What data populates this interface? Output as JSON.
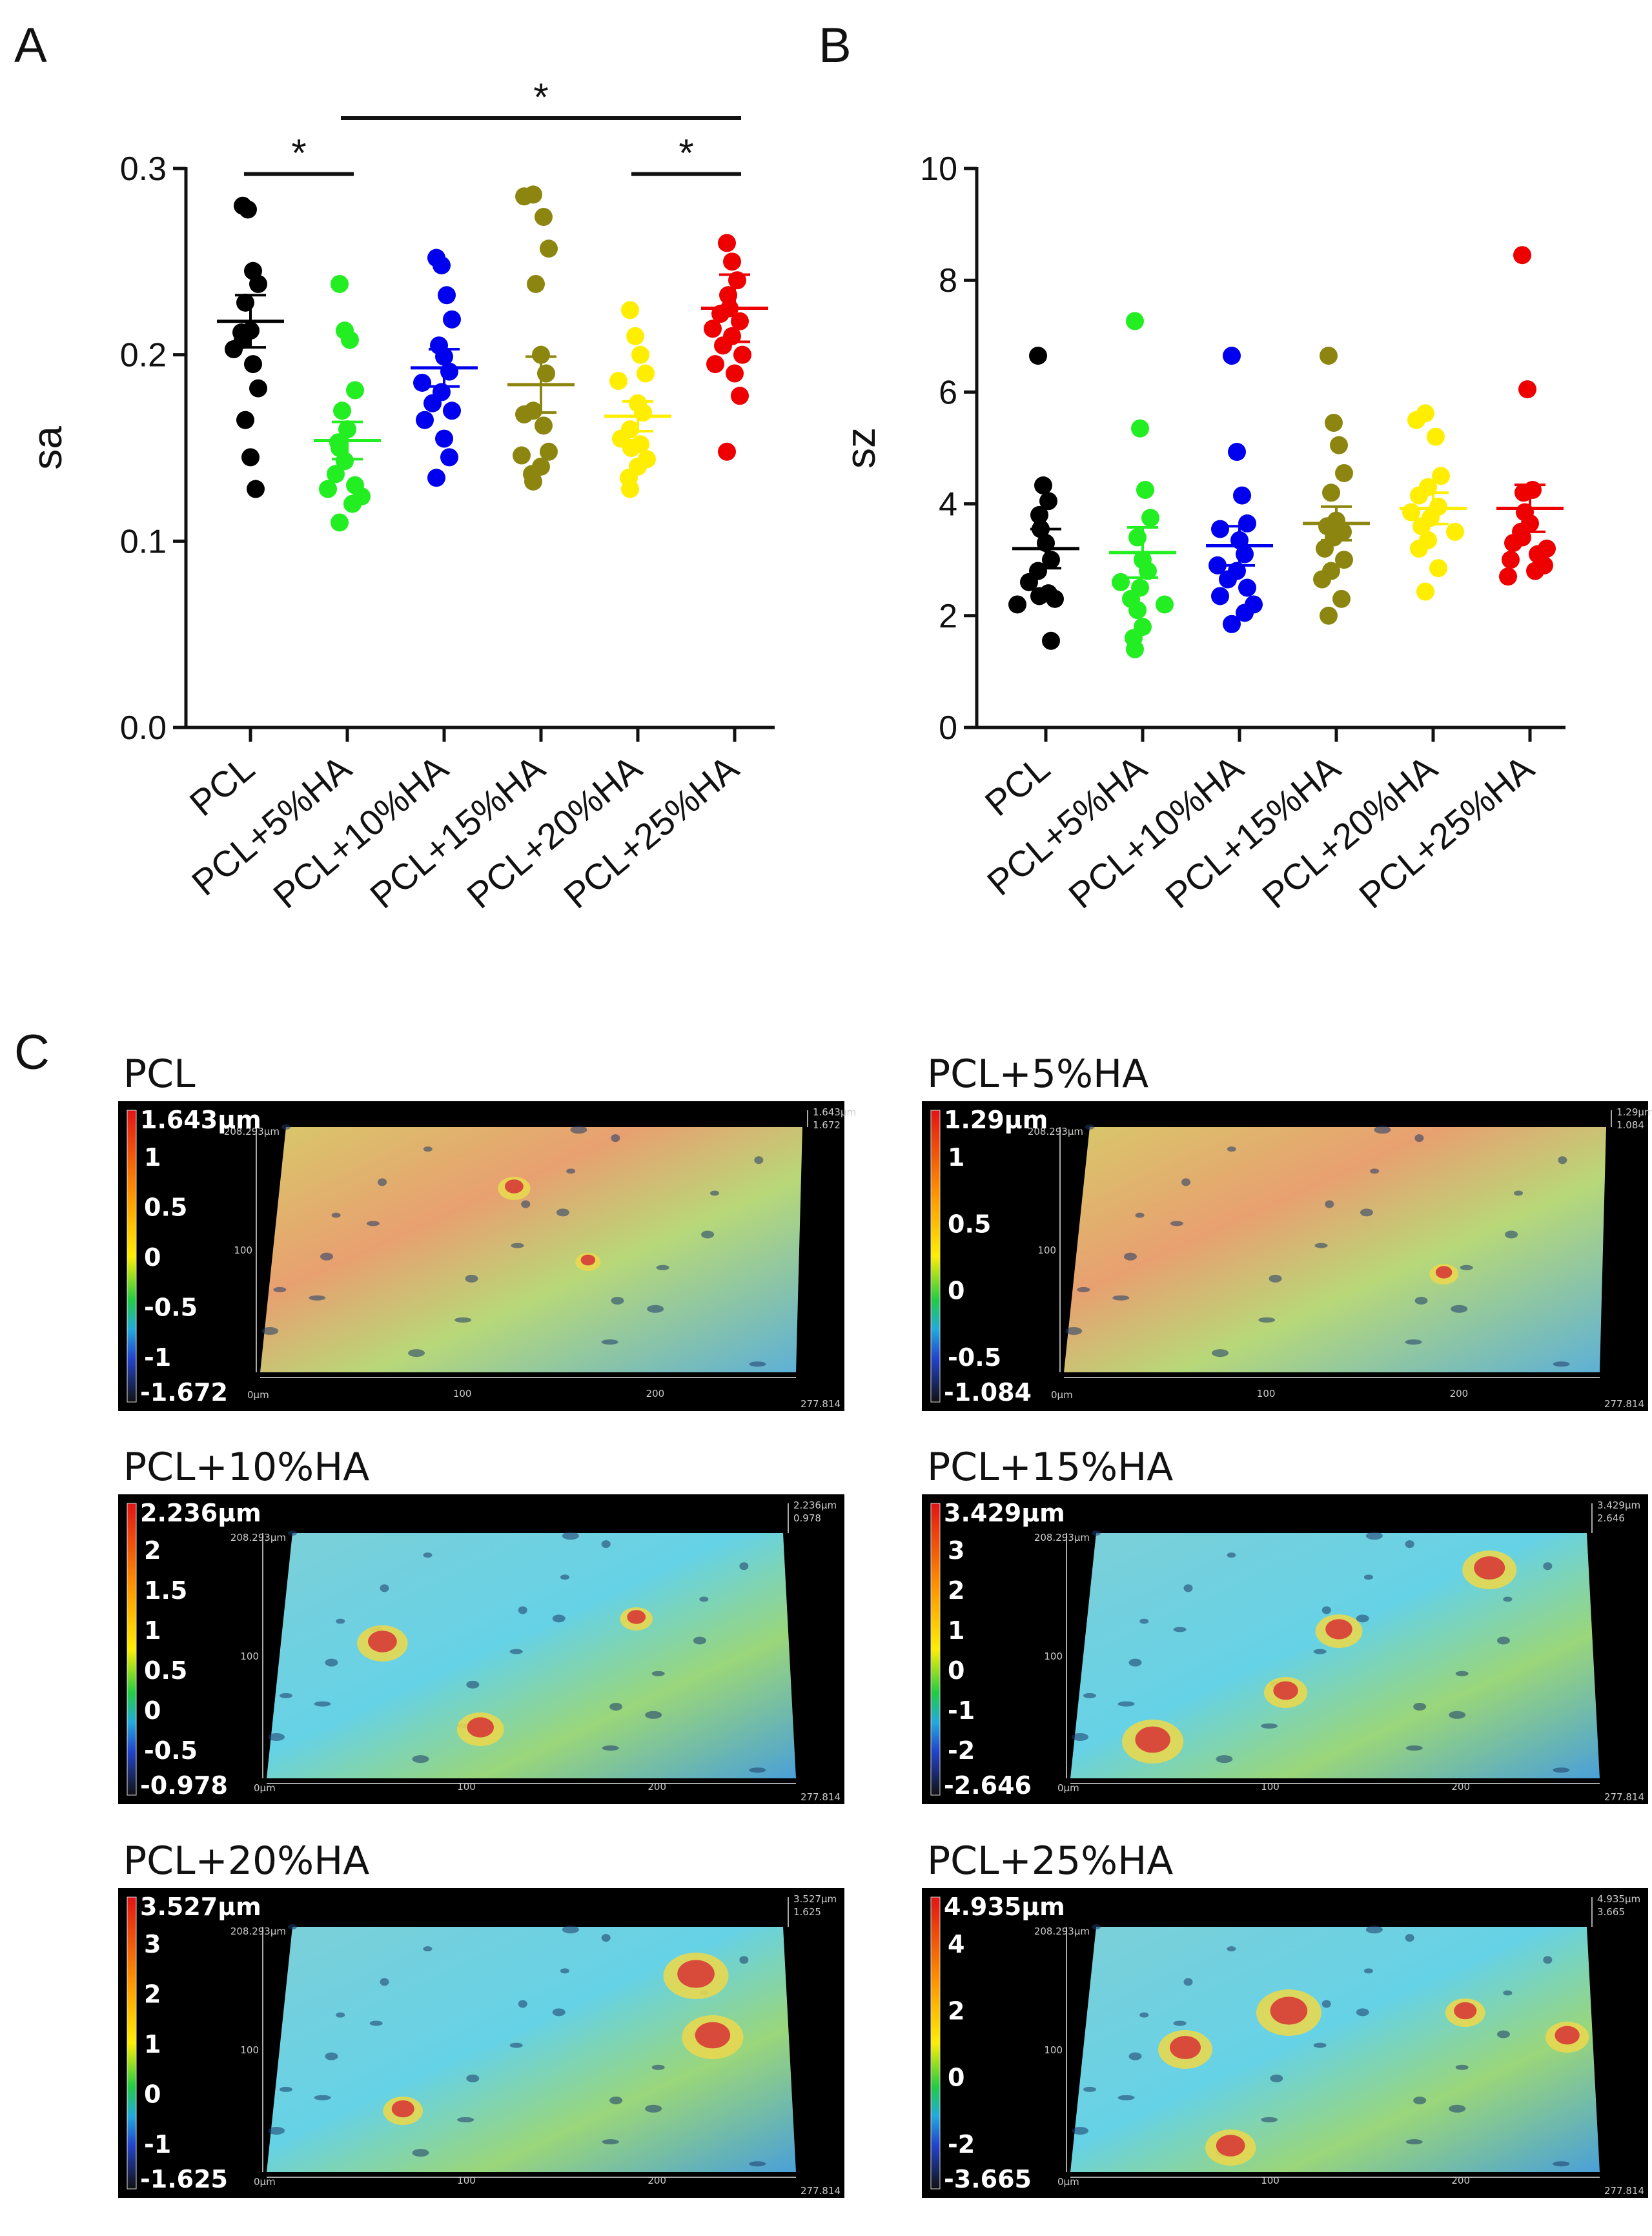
{
  "panels": {
    "a": "A",
    "b": "B",
    "c": "C"
  },
  "colors": {
    "PCL": "#000000",
    "PCL+5%HA": "#22ee22",
    "PCL+10%HA": "#0000ee",
    "PCL+15%HA": "#8c8610",
    "PCL+20%HA": "#ffee00",
    "PCL+25%HA": "#ee0000"
  },
  "chart_data": [
    {
      "id": "A",
      "type": "scatter",
      "ylabel": "sa",
      "ylim": [
        0.0,
        0.3
      ],
      "yticks": [
        "0.0",
        "0.1",
        "0.2",
        "0.3"
      ],
      "categories": [
        "PCL",
        "PCL+5%HA",
        "PCL+10%HA",
        "PCL+15%HA",
        "PCL+20%HA",
        "PCL+25%HA"
      ],
      "series": [
        {
          "name": "PCL",
          "mean": 0.218,
          "sem": 0.014,
          "values": [
            0.28,
            0.278,
            0.245,
            0.238,
            0.228,
            0.213,
            0.212,
            0.208,
            0.203,
            0.195,
            0.182,
            0.165,
            0.145,
            0.128
          ]
        },
        {
          "name": "PCL+5%HA",
          "mean": 0.154,
          "sem": 0.01,
          "values": [
            0.238,
            0.213,
            0.208,
            0.181,
            0.17,
            0.16,
            0.153,
            0.15,
            0.143,
            0.136,
            0.13,
            0.128,
            0.124,
            0.12,
            0.11
          ]
        },
        {
          "name": "PCL+10%HA",
          "mean": 0.193,
          "sem": 0.01,
          "values": [
            0.252,
            0.248,
            0.232,
            0.219,
            0.205,
            0.199,
            0.191,
            0.185,
            0.18,
            0.174,
            0.17,
            0.165,
            0.155,
            0.145,
            0.134
          ]
        },
        {
          "name": "PCL+15%HA",
          "mean": 0.184,
          "sem": 0.015,
          "values": [
            0.286,
            0.285,
            0.274,
            0.257,
            0.238,
            0.2,
            0.19,
            0.17,
            0.168,
            0.162,
            0.148,
            0.146,
            0.14,
            0.136,
            0.132
          ]
        },
        {
          "name": "PCL+20%HA",
          "mean": 0.167,
          "sem": 0.008,
          "values": [
            0.224,
            0.21,
            0.2,
            0.19,
            0.186,
            0.174,
            0.169,
            0.16,
            0.155,
            0.152,
            0.15,
            0.144,
            0.14,
            0.134,
            0.128
          ]
        },
        {
          "name": "PCL+25%HA",
          "mean": 0.225,
          "sem": 0.018,
          "values": [
            0.26,
            0.25,
            0.24,
            0.232,
            0.225,
            0.222,
            0.218,
            0.214,
            0.21,
            0.205,
            0.2,
            0.195,
            0.19,
            0.178,
            0.148
          ]
        }
      ],
      "significance": [
        {
          "from": "PCL",
          "to": "PCL+5%HA",
          "label": "*",
          "y": 0.297
        },
        {
          "from": "PCL+5%HA",
          "to": "PCL+25%HA",
          "label": "*",
          "y": 0.327
        },
        {
          "from": "PCL+20%HA",
          "to": "PCL+25%HA",
          "label": "*",
          "y": 0.297
        }
      ]
    },
    {
      "id": "B",
      "type": "scatter",
      "ylabel": "sz",
      "ylim": [
        0,
        10
      ],
      "yticks": [
        "0",
        "2",
        "4",
        "6",
        "8",
        "10"
      ],
      "categories": [
        "PCL",
        "PCL+5%HA",
        "PCL+10%HA",
        "PCL+15%HA",
        "PCL+20%HA",
        "PCL+25%HA"
      ],
      "series": [
        {
          "name": "PCL",
          "mean": 3.2,
          "sem": 0.35,
          "values": [
            6.65,
            4.33,
            4.05,
            3.8,
            3.55,
            3.3,
            3.0,
            2.8,
            2.6,
            2.4,
            2.35,
            2.3,
            2.2,
            1.55
          ]
        },
        {
          "name": "PCL+5%HA",
          "mean": 3.13,
          "sem": 0.45,
          "values": [
            7.27,
            5.35,
            4.25,
            3.75,
            3.4,
            3.0,
            2.8,
            2.6,
            2.5,
            2.3,
            2.2,
            2.1,
            1.8,
            1.6,
            1.4
          ]
        },
        {
          "name": "PCL+10%HA",
          "mean": 3.25,
          "sem": 0.35,
          "values": [
            6.65,
            4.93,
            4.15,
            3.65,
            3.55,
            3.35,
            3.1,
            2.9,
            2.8,
            2.65,
            2.5,
            2.35,
            2.2,
            2.05,
            1.85
          ]
        },
        {
          "name": "PCL+15%HA",
          "mean": 3.65,
          "sem": 0.3,
          "values": [
            6.65,
            5.45,
            5.05,
            4.55,
            4.2,
            3.7,
            3.6,
            3.5,
            3.4,
            3.2,
            3.0,
            2.8,
            2.65,
            2.3,
            2.0
          ]
        },
        {
          "name": "PCL+20%HA",
          "mean": 3.92,
          "sem": 0.28,
          "values": [
            5.62,
            5.5,
            5.2,
            4.5,
            4.3,
            4.15,
            3.95,
            3.85,
            3.75,
            3.6,
            3.5,
            3.35,
            3.2,
            2.85,
            2.43
          ]
        },
        {
          "name": "PCL+25%HA",
          "mean": 3.92,
          "sem": 0.42,
          "values": [
            8.45,
            6.05,
            4.25,
            4.2,
            3.85,
            3.65,
            3.5,
            3.4,
            3.3,
            3.2,
            3.1,
            3.0,
            2.9,
            2.8,
            2.7
          ]
        }
      ]
    }
  ],
  "maps": [
    {
      "title": "PCL",
      "top": "1.643μm",
      "ticks": [
        "1",
        "0.5",
        "0",
        "-0.5",
        "-1"
      ],
      "bottom": "-1.672",
      "top_small": "1.643μm",
      "right_small": "1.672",
      "y_mid": "100",
      "y_max": "208.293μm",
      "origin": "0μm",
      "x_mid1": "100",
      "x_mid2": "200",
      "x_max": "277.814"
    },
    {
      "title": "PCL+5%HA",
      "top": "1.29μm",
      "ticks": [
        "1",
        "0.5",
        "0",
        "-0.5"
      ],
      "bottom": "-1.084",
      "top_small": "1.29μm",
      "right_small": "1.084",
      "y_mid": "100",
      "y_max": "208.293μm",
      "origin": "0μm",
      "x_mid1": "100",
      "x_mid2": "200",
      "x_max": "277.814"
    },
    {
      "title": "PCL+10%HA",
      "top": "2.236μm",
      "ticks": [
        "2",
        "1.5",
        "1",
        "0.5",
        "0",
        "-0.5"
      ],
      "bottom": "-0.978",
      "top_small": "2.236μm",
      "right_small": "0.978",
      "y_mid": "100",
      "y_max": "208.293μm",
      "origin": "0μm",
      "x_mid1": "100",
      "x_mid2": "200",
      "x_max": "277.814"
    },
    {
      "title": "PCL+15%HA",
      "top": "3.429μm",
      "ticks": [
        "3",
        "2",
        "1",
        "0",
        "-1",
        "-2"
      ],
      "bottom": "-2.646",
      "top_small": "3.429μm",
      "right_small": "2.646",
      "y_mid": "100",
      "y_max": "208.293μm",
      "origin": "0μm",
      "x_mid1": "100",
      "x_mid2": "200",
      "x_max": "277.814"
    },
    {
      "title": "PCL+20%HA",
      "top": "3.527μm",
      "ticks": [
        "3",
        "2",
        "1",
        "0",
        "-1"
      ],
      "bottom": "-1.625",
      "top_small": "3.527μm",
      "right_small": "1.625",
      "y_mid": "100",
      "y_max": "208.293μm",
      "origin": "0μm",
      "x_mid1": "100",
      "x_mid2": "200",
      "x_max": "277.814"
    },
    {
      "title": "PCL+25%HA",
      "top": "4.935μm",
      "ticks": [
        "4",
        "2",
        "0",
        "-2"
      ],
      "bottom": "-3.665",
      "top_small": "4.935μm",
      "right_small": "3.665",
      "y_mid": "100",
      "y_max": "208.293μm",
      "origin": "0μm",
      "x_mid1": "100",
      "x_mid2": "200",
      "x_max": "277.814"
    }
  ]
}
